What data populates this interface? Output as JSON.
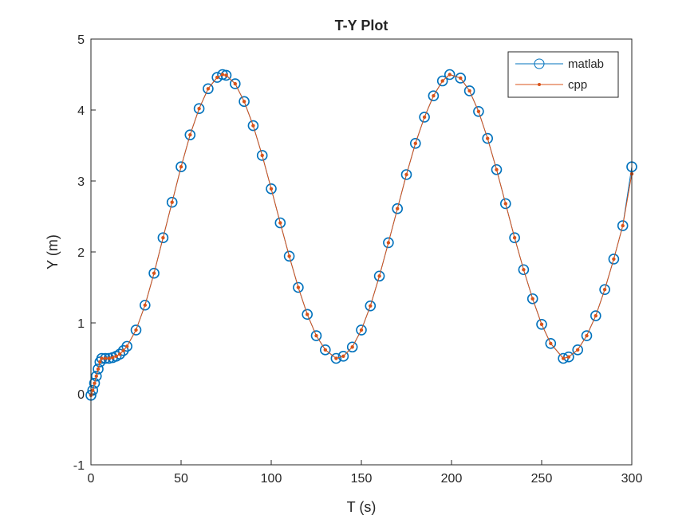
{
  "chart_data": {
    "type": "line",
    "title": "T-Y Plot",
    "xlabel": "T (s)",
    "ylabel": "Y (m)",
    "xlim": [
      0,
      300
    ],
    "ylim": [
      -1,
      5
    ],
    "x_ticks": [
      0,
      50,
      100,
      150,
      200,
      250,
      300
    ],
    "y_ticks": [
      -1,
      0,
      1,
      2,
      3,
      4,
      5
    ],
    "x_tick_labels": [
      "0",
      "50",
      "100",
      "150",
      "200",
      "250",
      "300"
    ],
    "y_tick_labels": [
      "-1",
      "0",
      "1",
      "2",
      "3",
      "4",
      "5"
    ],
    "grid": false,
    "legend_position": "top-right",
    "series": [
      {
        "name": "matlab",
        "color": "#0072BD",
        "marker": "circle",
        "x": [
          0,
          1,
          2,
          3,
          4,
          5,
          6,
          8,
          10,
          12,
          14,
          16,
          18,
          20,
          25,
          30,
          35,
          40,
          45,
          50,
          55,
          60,
          65,
          70,
          73,
          75,
          80,
          85,
          90,
          95,
          100,
          105,
          110,
          115,
          120,
          125,
          130,
          136,
          140,
          145,
          150,
          155,
          160,
          165,
          170,
          175,
          180,
          185,
          190,
          195,
          199,
          205,
          210,
          215,
          220,
          225,
          230,
          235,
          240,
          245,
          250,
          255,
          262,
          265,
          270,
          275,
          280,
          285,
          290,
          295,
          300
        ],
        "y": [
          -0.02,
          0.05,
          0.15,
          0.25,
          0.35,
          0.45,
          0.5,
          0.5,
          0.5,
          0.51,
          0.53,
          0.56,
          0.61,
          0.67,
          0.9,
          1.25,
          1.7,
          2.2,
          2.7,
          3.2,
          3.65,
          4.02,
          4.3,
          4.46,
          4.5,
          4.49,
          4.37,
          4.12,
          3.78,
          3.36,
          2.89,
          2.41,
          1.94,
          1.5,
          1.12,
          0.82,
          0.62,
          0.5,
          0.53,
          0.66,
          0.9,
          1.24,
          1.66,
          2.13,
          2.61,
          3.09,
          3.53,
          3.9,
          4.2,
          4.41,
          4.5,
          4.45,
          4.27,
          3.98,
          3.6,
          3.16,
          2.68,
          2.2,
          1.75,
          1.34,
          0.98,
          0.71,
          0.5,
          0.52,
          0.62,
          0.82,
          1.1,
          1.47,
          1.9,
          2.37,
          3.2
        ]
      },
      {
        "name": "cpp",
        "color": "#D95319",
        "marker": "dot",
        "x": [
          0,
          1,
          2,
          3,
          4,
          5,
          6,
          8,
          10,
          12,
          14,
          16,
          18,
          20,
          25,
          30,
          35,
          40,
          45,
          50,
          55,
          60,
          65,
          70,
          73,
          75,
          80,
          85,
          90,
          95,
          100,
          105,
          110,
          115,
          120,
          125,
          130,
          136,
          140,
          145,
          150,
          155,
          160,
          165,
          170,
          175,
          180,
          185,
          190,
          195,
          199,
          205,
          210,
          215,
          220,
          225,
          230,
          235,
          240,
          245,
          250,
          255,
          262,
          265,
          270,
          275,
          280,
          285,
          290,
          295,
          300
        ],
        "y": [
          -0.02,
          0.05,
          0.15,
          0.25,
          0.35,
          0.45,
          0.5,
          0.5,
          0.5,
          0.51,
          0.53,
          0.56,
          0.61,
          0.67,
          0.9,
          1.25,
          1.7,
          2.2,
          2.7,
          3.2,
          3.65,
          4.02,
          4.3,
          4.46,
          4.5,
          4.49,
          4.37,
          4.12,
          3.78,
          3.36,
          2.89,
          2.41,
          1.94,
          1.5,
          1.12,
          0.82,
          0.62,
          0.5,
          0.53,
          0.66,
          0.9,
          1.24,
          1.66,
          2.13,
          2.61,
          3.09,
          3.53,
          3.9,
          4.2,
          4.41,
          4.5,
          4.45,
          4.27,
          3.98,
          3.6,
          3.16,
          2.68,
          2.2,
          1.75,
          1.34,
          0.98,
          0.71,
          0.5,
          0.52,
          0.62,
          0.82,
          1.1,
          1.47,
          1.9,
          2.37,
          3.1
        ]
      }
    ]
  }
}
